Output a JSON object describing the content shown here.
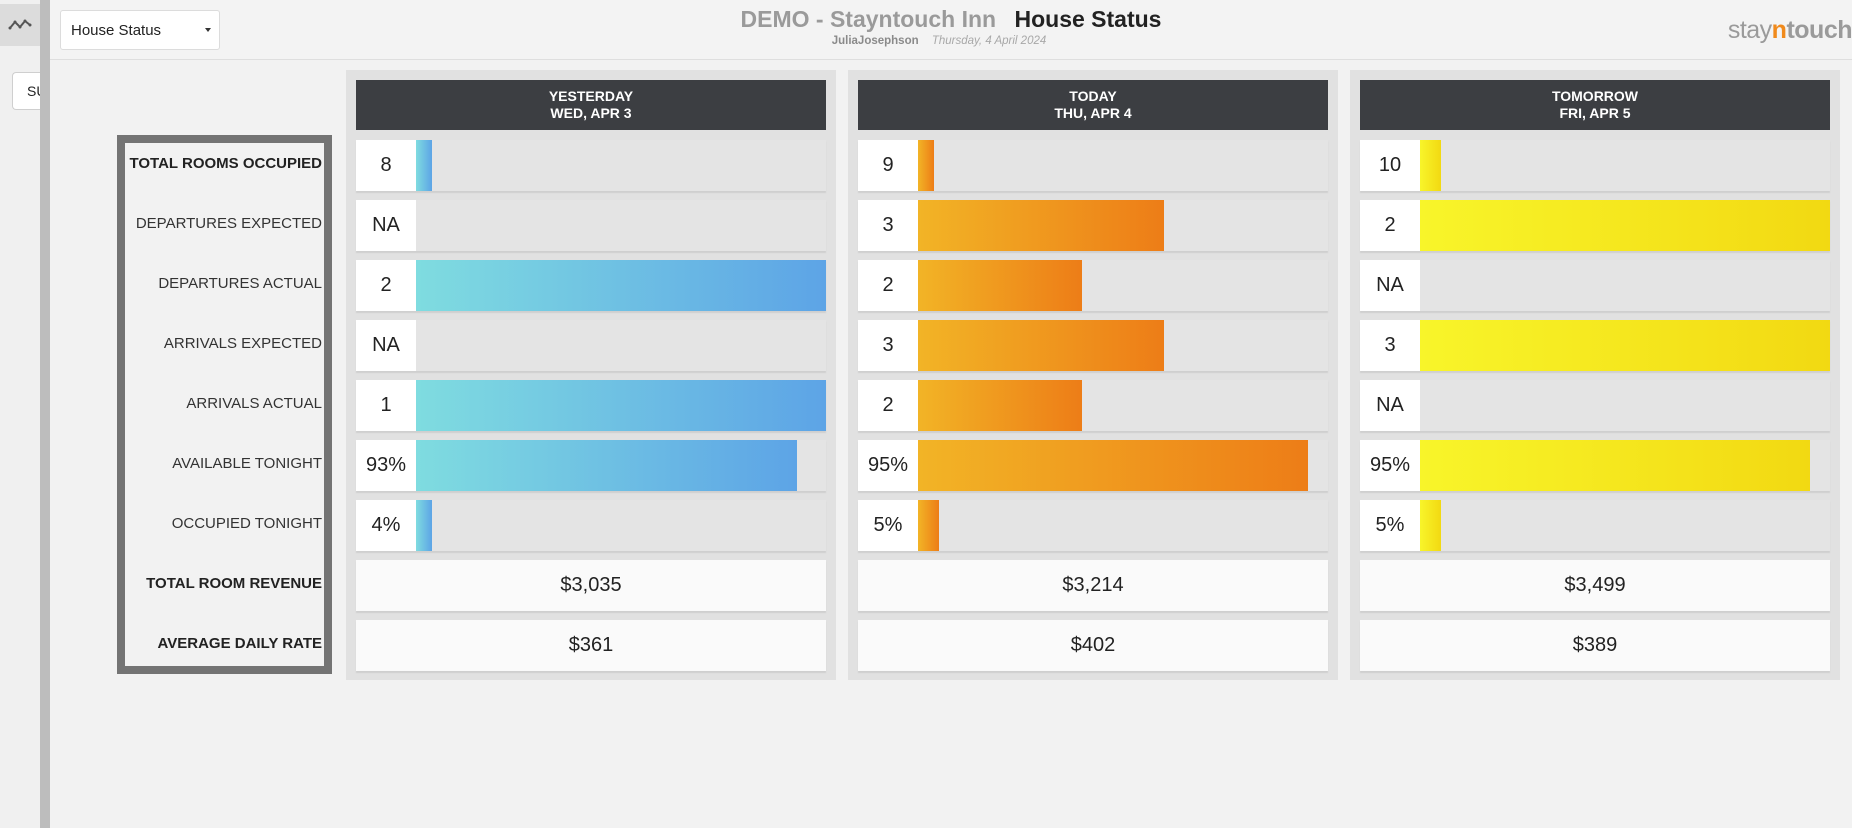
{
  "colors": {
    "blue": "#5da4e6",
    "orange": "#ed7d17",
    "yellow": "#f2d912",
    "header_dark": "#3c3e42",
    "brand_accent": "#f08a1c"
  },
  "rail": {
    "icon": "trend-line-icon",
    "input_value": "SU"
  },
  "header": {
    "report_select": "House Status",
    "hotel": "DEMO - Stayntouch Inn",
    "page_title": "House Status",
    "user": "JuliaJosephson",
    "date": "Thursday, 4 April 2024",
    "brand": {
      "part1": "stay",
      "part2": "n",
      "part3": "touch"
    }
  },
  "row_labels": [
    "TOTAL ROOMS OCCUPIED",
    "DEPARTURES EXPECTED",
    "DEPARTURES ACTUAL",
    "ARRIVALS EXPECTED",
    "ARRIVALS ACTUAL",
    "AVAILABLE TONIGHT",
    "OCCUPIED TONIGHT",
    "TOTAL ROOM REVENUE",
    "AVERAGE DAILY RATE"
  ],
  "columns": [
    {
      "day": "YESTERDAY",
      "date": "WED, APR 3",
      "stats": [
        {
          "value": "8",
          "fill": 0.04
        },
        {
          "value": "NA",
          "fill": 0
        },
        {
          "value": "2",
          "fill": 1.0
        },
        {
          "value": "NA",
          "fill": 0
        },
        {
          "value": "1",
          "fill": 1.0
        },
        {
          "value": "93%",
          "fill": 0.93
        },
        {
          "value": "4%",
          "fill": 0.04
        }
      ],
      "revenue": "$3,035",
      "adr": "$361"
    },
    {
      "day": "TODAY",
      "date": "THU, APR 4",
      "stats": [
        {
          "value": "9",
          "fill": 0.04
        },
        {
          "value": "3",
          "fill": 0.6
        },
        {
          "value": "2",
          "fill": 0.4
        },
        {
          "value": "3",
          "fill": 0.6
        },
        {
          "value": "2",
          "fill": 0.4
        },
        {
          "value": "95%",
          "fill": 0.95
        },
        {
          "value": "5%",
          "fill": 0.05
        }
      ],
      "revenue": "$3,214",
      "adr": "$402"
    },
    {
      "day": "TOMORROW",
      "date": "FRI, APR 5",
      "stats": [
        {
          "value": "10",
          "fill": 0.05
        },
        {
          "value": "2",
          "fill": 1.0
        },
        {
          "value": "NA",
          "fill": 0
        },
        {
          "value": "3",
          "fill": 1.0
        },
        {
          "value": "NA",
          "fill": 0
        },
        {
          "value": "95%",
          "fill": 0.95
        },
        {
          "value": "5%",
          "fill": 0.05
        }
      ],
      "revenue": "$3,499",
      "adr": "$389"
    }
  ]
}
